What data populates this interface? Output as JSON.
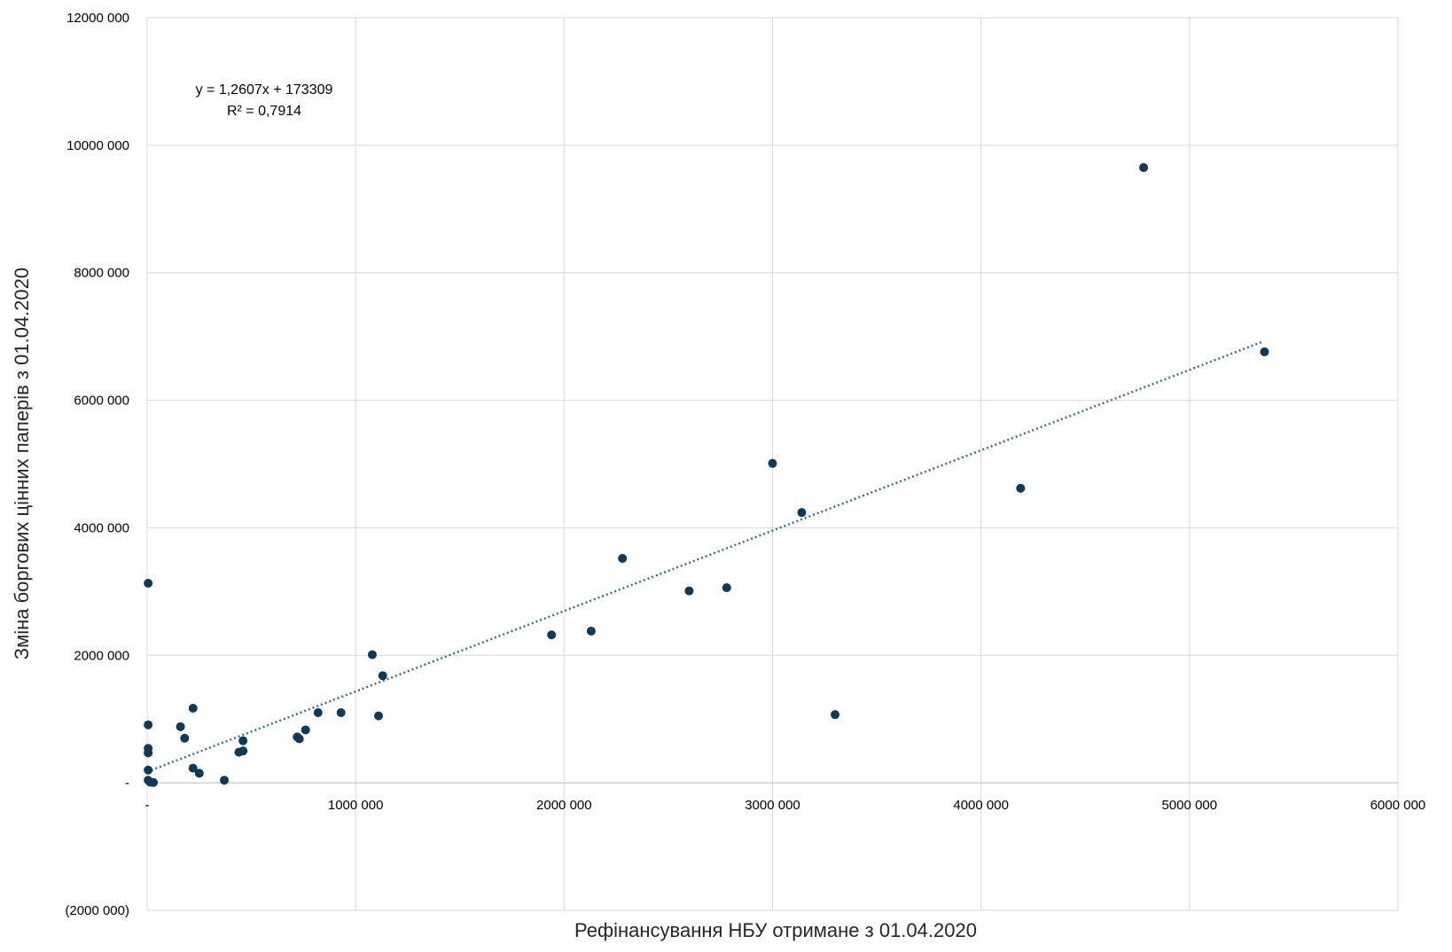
{
  "chart_data": {
    "type": "scatter",
    "xlabel": "Рефінансування НБУ отримане з 01.04.2020",
    "ylabel": "Зміна боргових цінних паперів з 01.04.2020",
    "xlim": [
      0,
      6000000
    ],
    "ylim": [
      -2000000,
      12000000
    ],
    "x_ticks": [
      {
        "value": 0,
        "label": "-"
      },
      {
        "value": 1000000,
        "label": "1000 000"
      },
      {
        "value": 2000000,
        "label": "2000 000"
      },
      {
        "value": 3000000,
        "label": "3000 000"
      },
      {
        "value": 4000000,
        "label": "4000 000"
      },
      {
        "value": 5000000,
        "label": "5000 000"
      },
      {
        "value": 6000000,
        "label": "6000 000"
      }
    ],
    "y_ticks": [
      {
        "value": -2000000,
        "label": "(2000 000)"
      },
      {
        "value": 0,
        "label": "-"
      },
      {
        "value": 2000000,
        "label": "2000 000"
      },
      {
        "value": 4000000,
        "label": "4000 000"
      },
      {
        "value": 6000000,
        "label": "6000 000"
      },
      {
        "value": 8000000,
        "label": "8000 000"
      },
      {
        "value": 10000000,
        "label": "10000 000"
      },
      {
        "value": 12000000,
        "label": "12000 000"
      }
    ],
    "grid": true,
    "point_color": "#0d3a5c",
    "trendline_color": "#3b6e96",
    "trendline": {
      "type": "linear",
      "slope": 1.2607,
      "intercept": 173309,
      "x_range": [
        0,
        5350000
      ],
      "equation_label": "y = 1,2607x + 173309",
      "r2_label": "R² = 0,7914"
    },
    "points": [
      {
        "x": 5000,
        "y": 3130000
      },
      {
        "x": 5000,
        "y": 910000
      },
      {
        "x": 5000,
        "y": 540000
      },
      {
        "x": 5000,
        "y": 470000
      },
      {
        "x": 5000,
        "y": 200000
      },
      {
        "x": 5000,
        "y": 40000
      },
      {
        "x": 15000,
        "y": 10000
      },
      {
        "x": 30000,
        "y": 5000
      },
      {
        "x": 160000,
        "y": 880000
      },
      {
        "x": 180000,
        "y": 700000
      },
      {
        "x": 220000,
        "y": 1170000
      },
      {
        "x": 220000,
        "y": 230000
      },
      {
        "x": 250000,
        "y": 150000
      },
      {
        "x": 370000,
        "y": 40000
      },
      {
        "x": 440000,
        "y": 480000
      },
      {
        "x": 460000,
        "y": 500000
      },
      {
        "x": 460000,
        "y": 660000
      },
      {
        "x": 720000,
        "y": 720000
      },
      {
        "x": 730000,
        "y": 690000
      },
      {
        "x": 760000,
        "y": 830000
      },
      {
        "x": 820000,
        "y": 1100000
      },
      {
        "x": 930000,
        "y": 1100000
      },
      {
        "x": 1080000,
        "y": 2010000
      },
      {
        "x": 1110000,
        "y": 1050000
      },
      {
        "x": 1130000,
        "y": 1680000
      },
      {
        "x": 1940000,
        "y": 2320000
      },
      {
        "x": 2130000,
        "y": 2380000
      },
      {
        "x": 2280000,
        "y": 3520000
      },
      {
        "x": 2600000,
        "y": 3010000
      },
      {
        "x": 2780000,
        "y": 3060000
      },
      {
        "x": 3000000,
        "y": 5010000
      },
      {
        "x": 3140000,
        "y": 4240000
      },
      {
        "x": 3300000,
        "y": 1070000
      },
      {
        "x": 4190000,
        "y": 4620000
      },
      {
        "x": 4780000,
        "y": 9650000
      },
      {
        "x": 5360000,
        "y": 6760000
      }
    ]
  }
}
